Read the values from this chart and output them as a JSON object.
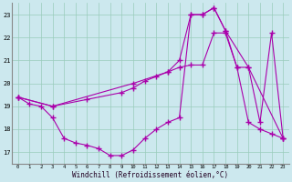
{
  "xlabel": "Windchill (Refroidissement éolien,°C)",
  "bg_color": "#cce8ee",
  "line_color": "#aa00aa",
  "marker": "+",
  "markersize": 4,
  "linewidth": 0.8,
  "xlim": [
    -0.5,
    23.5
  ],
  "ylim": [
    16.5,
    23.5
  ],
  "yticks": [
    17,
    18,
    19,
    20,
    21,
    22,
    23
  ],
  "xticks": [
    0,
    1,
    2,
    3,
    4,
    5,
    6,
    7,
    8,
    9,
    10,
    11,
    12,
    13,
    14,
    15,
    16,
    17,
    18,
    19,
    20,
    21,
    22,
    23
  ],
  "grid_color": "#99ccbb",
  "series1": [
    [
      0,
      19.4
    ],
    [
      1,
      19.1
    ],
    [
      2,
      19.0
    ],
    [
      3,
      18.5
    ],
    [
      4,
      17.6
    ],
    [
      5,
      17.4
    ],
    [
      6,
      17.3
    ],
    [
      7,
      17.15
    ],
    [
      8,
      16.85
    ],
    [
      9,
      16.85
    ],
    [
      10,
      17.1
    ],
    [
      11,
      17.6
    ],
    [
      12,
      18.0
    ],
    [
      13,
      18.3
    ],
    [
      14,
      18.5
    ],
    [
      15,
      23.0
    ],
    [
      16,
      23.0
    ],
    [
      17,
      23.3
    ],
    [
      18,
      22.3
    ],
    [
      19,
      20.7
    ],
    [
      20,
      18.3
    ],
    [
      21,
      18.0
    ],
    [
      22,
      17.8
    ],
    [
      23,
      17.6
    ]
  ],
  "series2": [
    [
      0,
      19.4
    ],
    [
      3,
      19.0
    ],
    [
      10,
      20.0
    ],
    [
      13,
      20.5
    ],
    [
      14,
      21.0
    ],
    [
      15,
      23.0
    ],
    [
      16,
      23.0
    ],
    [
      17,
      23.3
    ],
    [
      18,
      22.3
    ],
    [
      20,
      20.7
    ],
    [
      23,
      17.6
    ]
  ],
  "series3": [
    [
      0,
      19.4
    ],
    [
      3,
      19.0
    ],
    [
      6,
      19.3
    ],
    [
      9,
      19.6
    ],
    [
      10,
      19.8
    ],
    [
      11,
      20.1
    ],
    [
      12,
      20.3
    ],
    [
      13,
      20.5
    ],
    [
      14,
      20.7
    ],
    [
      15,
      20.8
    ],
    [
      16,
      20.8
    ],
    [
      17,
      22.2
    ],
    [
      18,
      22.2
    ],
    [
      19,
      20.7
    ],
    [
      20,
      20.7
    ],
    [
      21,
      18.3
    ],
    [
      22,
      22.2
    ],
    [
      23,
      17.6
    ]
  ]
}
